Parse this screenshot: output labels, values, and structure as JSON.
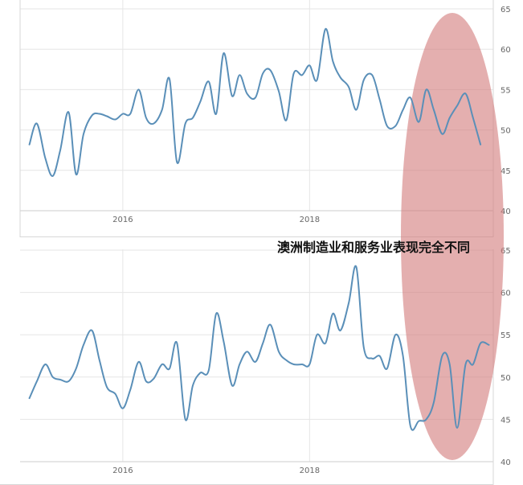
{
  "caption": "澳洲制造业和服务业表现完全不同",
  "colors": {
    "line": "#5a8fb8",
    "highlight": "#d27a7a",
    "grid": "#e6e6e6",
    "frame": "#d7d7d7",
    "text": "#666666"
  },
  "chart_data": [
    {
      "type": "line",
      "ylim": [
        40,
        65
      ],
      "yticks": [
        40,
        45,
        50,
        55,
        60,
        65
      ],
      "xlim": [
        2014.9,
        2019.95
      ],
      "xticks": [
        {
          "x": 2016,
          "label": "2016"
        },
        {
          "x": 2018,
          "label": "2018"
        }
      ],
      "grid": true,
      "series": [
        {
          "points": [
            [
              2015.0,
              48.2
            ],
            [
              2015.08,
              50.8
            ],
            [
              2015.17,
              46.5
            ],
            [
              2015.25,
              44.3
            ],
            [
              2015.33,
              47.5
            ],
            [
              2015.42,
              52.2
            ],
            [
              2015.5,
              44.5
            ],
            [
              2015.58,
              49.5
            ],
            [
              2015.67,
              51.8
            ],
            [
              2015.75,
              52.0
            ],
            [
              2015.83,
              51.7
            ],
            [
              2015.92,
              51.3
            ],
            [
              2016.0,
              52.0
            ],
            [
              2016.08,
              52.0
            ],
            [
              2016.17,
              55.0
            ],
            [
              2016.25,
              51.5
            ],
            [
              2016.33,
              50.8
            ],
            [
              2016.42,
              52.5
            ],
            [
              2016.5,
              56.3
            ],
            [
              2016.58,
              46.0
            ],
            [
              2016.67,
              50.8
            ],
            [
              2016.75,
              51.5
            ],
            [
              2016.83,
              53.5
            ],
            [
              2016.92,
              56.0
            ],
            [
              2017.0,
              52.0
            ],
            [
              2017.08,
              59.5
            ],
            [
              2017.17,
              54.2
            ],
            [
              2017.25,
              56.8
            ],
            [
              2017.33,
              54.5
            ],
            [
              2017.42,
              54.0
            ],
            [
              2017.5,
              57.0
            ],
            [
              2017.58,
              57.4
            ],
            [
              2017.67,
              54.8
            ],
            [
              2017.75,
              51.2
            ],
            [
              2017.83,
              57.0
            ],
            [
              2017.92,
              56.8
            ],
            [
              2018.0,
              58.0
            ],
            [
              2018.08,
              56.2
            ],
            [
              2018.17,
              62.5
            ],
            [
              2018.25,
              58.5
            ],
            [
              2018.33,
              56.5
            ],
            [
              2018.42,
              55.3
            ],
            [
              2018.5,
              52.5
            ],
            [
              2018.58,
              56.2
            ],
            [
              2018.67,
              56.8
            ],
            [
              2018.75,
              53.8
            ],
            [
              2018.83,
              50.5
            ],
            [
              2018.92,
              50.5
            ],
            [
              2019.0,
              52.5
            ],
            [
              2019.08,
              54.0
            ],
            [
              2019.17,
              51.0
            ],
            [
              2019.25,
              55.0
            ],
            [
              2019.33,
              52.5
            ],
            [
              2019.42,
              49.5
            ],
            [
              2019.5,
              51.5
            ],
            [
              2019.58,
              53.0
            ],
            [
              2019.67,
              54.5
            ],
            [
              2019.75,
              51.5
            ],
            [
              2019.83,
              48.2
            ]
          ]
        }
      ]
    },
    {
      "type": "line",
      "ylim": [
        40,
        65
      ],
      "yticks": [
        40,
        45,
        50,
        55,
        60,
        65
      ],
      "xlim": [
        2014.9,
        2019.95
      ],
      "xticks": [
        {
          "x": 2016,
          "label": "2016"
        },
        {
          "x": 2018,
          "label": "2018"
        }
      ],
      "grid": true,
      "series": [
        {
          "points": [
            [
              2015.0,
              47.5
            ],
            [
              2015.08,
              49.5
            ],
            [
              2015.17,
              51.5
            ],
            [
              2015.25,
              50.0
            ],
            [
              2015.33,
              49.7
            ],
            [
              2015.42,
              49.5
            ],
            [
              2015.5,
              51.0
            ],
            [
              2015.58,
              53.8
            ],
            [
              2015.67,
              55.5
            ],
            [
              2015.75,
              52.0
            ],
            [
              2015.83,
              48.8
            ],
            [
              2015.92,
              48.0
            ],
            [
              2016.0,
              46.3
            ],
            [
              2016.08,
              48.5
            ],
            [
              2016.17,
              51.8
            ],
            [
              2016.25,
              49.5
            ],
            [
              2016.33,
              49.8
            ],
            [
              2016.42,
              51.5
            ],
            [
              2016.5,
              51.0
            ],
            [
              2016.58,
              54.0
            ],
            [
              2016.67,
              45.0
            ],
            [
              2016.75,
              49.0
            ],
            [
              2016.83,
              50.5
            ],
            [
              2016.92,
              50.8
            ],
            [
              2017.0,
              57.5
            ],
            [
              2017.08,
              54.2
            ],
            [
              2017.17,
              49.0
            ],
            [
              2017.25,
              51.5
            ],
            [
              2017.33,
              53.0
            ],
            [
              2017.42,
              51.8
            ],
            [
              2017.5,
              54.0
            ],
            [
              2017.58,
              56.2
            ],
            [
              2017.67,
              53.0
            ],
            [
              2017.75,
              52.0
            ],
            [
              2017.83,
              51.5
            ],
            [
              2017.92,
              51.5
            ],
            [
              2018.0,
              51.5
            ],
            [
              2018.08,
              55.0
            ],
            [
              2018.17,
              54.0
            ],
            [
              2018.25,
              57.5
            ],
            [
              2018.33,
              55.5
            ],
            [
              2018.42,
              58.8
            ],
            [
              2018.5,
              63.0
            ],
            [
              2018.58,
              53.5
            ],
            [
              2018.67,
              52.2
            ],
            [
              2018.75,
              52.5
            ],
            [
              2018.83,
              51.0
            ],
            [
              2018.92,
              55.0
            ],
            [
              2019.0,
              52.5
            ],
            [
              2019.08,
              44.2
            ],
            [
              2019.17,
              44.8
            ],
            [
              2019.25,
              45.0
            ],
            [
              2019.33,
              47.0
            ],
            [
              2019.42,
              52.5
            ],
            [
              2019.5,
              51.5
            ],
            [
              2019.58,
              44.0
            ],
            [
              2019.67,
              51.5
            ],
            [
              2019.75,
              51.5
            ],
            [
              2019.83,
              54.0
            ],
            [
              2019.92,
              53.8
            ]
          ]
        }
      ]
    }
  ]
}
